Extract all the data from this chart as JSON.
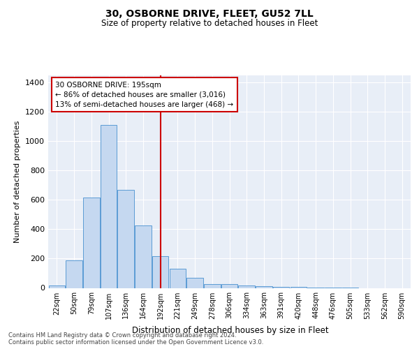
{
  "title1": "30, OSBORNE DRIVE, FLEET, GU52 7LL",
  "title2": "Size of property relative to detached houses in Fleet",
  "xlabel": "Distribution of detached houses by size in Fleet",
  "ylabel": "Number of detached properties",
  "bar_color": "#c5d8f0",
  "bar_edge_color": "#5b9bd5",
  "background_color": "#e8eef7",
  "grid_color": "#ffffff",
  "vline_color": "#cc0000",
  "annotation_text": "30 OSBORNE DRIVE: 195sqm\n← 86% of detached houses are smaller (3,016)\n13% of semi-detached houses are larger (468) →",
  "annotation_box_color": "#cc0000",
  "footer_text": "Contains HM Land Registry data © Crown copyright and database right 2024.\nContains public sector information licensed under the Open Government Licence v3.0.",
  "categories": [
    "22sqm",
    "50sqm",
    "79sqm",
    "107sqm",
    "136sqm",
    "164sqm",
    "192sqm",
    "221sqm",
    "249sqm",
    "278sqm",
    "306sqm",
    "334sqm",
    "363sqm",
    "391sqm",
    "420sqm",
    "448sqm",
    "476sqm",
    "505sqm",
    "533sqm",
    "562sqm",
    "590sqm"
  ],
  "bar_values": [
    15,
    190,
    615,
    1110,
    670,
    425,
    215,
    130,
    68,
    28,
    25,
    18,
    10,
    8,
    5,
    3,
    2,
    1,
    0,
    0,
    0
  ],
  "ylim": [
    0,
    1450
  ],
  "yticks": [
    0,
    200,
    400,
    600,
    800,
    1000,
    1200,
    1400
  ],
  "vline_idx": 6,
  "figsize": [
    6.0,
    5.0
  ],
  "dpi": 100
}
